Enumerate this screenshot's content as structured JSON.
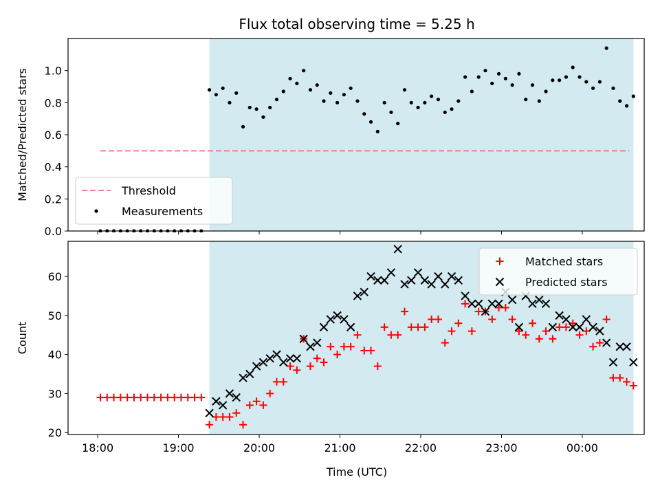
{
  "chart_data": {
    "title": "Flux total observing time = 5.25 h",
    "xlabel": "Time (UTC)",
    "x_ticks": [
      "18:00",
      "19:00",
      "20:00",
      "21:00",
      "22:00",
      "23:00",
      "00:00"
    ],
    "observing_window": {
      "start": "19:23",
      "end": "00:38",
      "color": "#d3eaf0"
    },
    "panels": [
      {
        "type": "scatter",
        "ylabel": "Matched/Predicted stars",
        "ylim": [
          0,
          1.2
        ],
        "y_ticks": [
          0.0,
          0.2,
          0.4,
          0.6,
          0.8,
          1.0
        ],
        "y_tick_labels": [
          "0.0",
          "0.2",
          "0.4",
          "0.6",
          "0.8",
          "1.0"
        ],
        "legend_position": "lower-left",
        "series": [
          {
            "name": "Threshold",
            "kind": "dashed-line",
            "color": "#f08080",
            "x": [
              "18:02",
              "00:35"
            ],
            "y": [
              0.5,
              0.5
            ]
          },
          {
            "name": "Measurements",
            "kind": "dot",
            "color": "#000000",
            "x": [
              "18:02",
              "18:07",
              "18:12",
              "18:17",
              "18:22",
              "18:27",
              "18:32",
              "18:37",
              "18:42",
              "18:47",
              "18:52",
              "18:57",
              "19:02",
              "19:07",
              "19:12",
              "19:17",
              "19:23",
              "19:28",
              "19:33",
              "19:38",
              "19:43",
              "19:48",
              "19:53",
              "19:58",
              "20:03",
              "20:08",
              "20:13",
              "20:18",
              "20:23",
              "20:28",
              "20:33",
              "20:38",
              "20:43",
              "20:48",
              "20:53",
              "20:58",
              "21:03",
              "21:08",
              "21:13",
              "21:18",
              "21:23",
              "21:28",
              "21:33",
              "21:38",
              "21:43",
              "21:48",
              "21:53",
              "21:58",
              "22:03",
              "22:08",
              "22:13",
              "22:18",
              "22:23",
              "22:28",
              "22:33",
              "22:38",
              "22:43",
              "22:48",
              "22:53",
              "22:58",
              "23:03",
              "23:08",
              "23:13",
              "23:18",
              "23:23",
              "23:28",
              "23:33",
              "23:38",
              "23:43",
              "23:48",
              "23:53",
              "23:58",
              "00:03",
              "00:08",
              "00:13",
              "00:18",
              "00:23",
              "00:28",
              "00:33",
              "00:38"
            ],
            "y": [
              0,
              0,
              0,
              0,
              0,
              0,
              0,
              0,
              0,
              0,
              0,
              0,
              0,
              0,
              0,
              0,
              0.88,
              0.85,
              0.89,
              0.8,
              0.86,
              0.65,
              0.77,
              0.76,
              0.71,
              0.77,
              0.82,
              0.87,
              0.95,
              0.92,
              1.0,
              0.88,
              0.91,
              0.81,
              0.86,
              0.8,
              0.85,
              0.89,
              0.81,
              0.73,
              0.68,
              0.62,
              0.8,
              0.74,
              0.67,
              0.88,
              0.8,
              0.77,
              0.8,
              0.84,
              0.82,
              0.74,
              0.76,
              0.81,
              0.96,
              0.87,
              0.96,
              1.0,
              0.92,
              0.98,
              0.95,
              0.91,
              0.98,
              0.82,
              0.91,
              0.81,
              0.87,
              0.94,
              0.94,
              0.96,
              1.02,
              0.96,
              0.93,
              0.89,
              0.93,
              1.14,
              0.89,
              0.81,
              0.78,
              0.84
            ]
          }
        ]
      },
      {
        "type": "scatter",
        "ylabel": "Count",
        "ylim": [
          19.5,
          69
        ],
        "y_ticks": [
          20,
          30,
          40,
          50,
          60
        ],
        "y_tick_labels": [
          "20",
          "30",
          "40",
          "50",
          "60"
        ],
        "legend_position": "top-right",
        "series": [
          {
            "name": "Matched stars",
            "kind": "plus",
            "color": "#ff0000",
            "x": [
              "18:02",
              "18:07",
              "18:12",
              "18:17",
              "18:22",
              "18:27",
              "18:32",
              "18:37",
              "18:42",
              "18:47",
              "18:52",
              "18:57",
              "19:02",
              "19:07",
              "19:12",
              "19:17",
              "19:23",
              "19:28",
              "19:33",
              "19:38",
              "19:43",
              "19:48",
              "19:53",
              "19:58",
              "20:03",
              "20:08",
              "20:13",
              "20:18",
              "20:23",
              "20:28",
              "20:33",
              "20:38",
              "20:43",
              "20:48",
              "20:53",
              "20:58",
              "21:03",
              "21:08",
              "21:13",
              "21:18",
              "21:23",
              "21:28",
              "21:33",
              "21:38",
              "21:43",
              "21:48",
              "21:53",
              "21:58",
              "22:03",
              "22:08",
              "22:13",
              "22:18",
              "22:23",
              "22:28",
              "22:33",
              "22:38",
              "22:43",
              "22:48",
              "22:53",
              "22:58",
              "23:03",
              "23:08",
              "23:13",
              "23:18",
              "23:23",
              "23:28",
              "23:33",
              "23:38",
              "23:43",
              "23:48",
              "23:53",
              "23:58",
              "00:03",
              "00:08",
              "00:13",
              "00:18",
              "00:23",
              "00:28",
              "00:33",
              "00:38"
            ],
            "y": [
              29,
              29,
              29,
              29,
              29,
              29,
              29,
              29,
              29,
              29,
              29,
              29,
              29,
              29,
              29,
              29,
              22,
              24,
              24,
              24,
              25,
              22,
              27,
              28,
              27,
              30,
              33,
              33,
              37,
              36,
              44,
              37,
              39,
              38,
              42,
              40,
              42,
              42,
              45,
              41,
              41,
              37,
              47,
              45,
              45,
              51,
              47,
              47,
              47,
              49,
              49,
              43,
              46,
              48,
              53,
              46,
              51,
              51,
              49,
              52,
              52,
              49,
              46,
              45,
              48,
              44,
              46,
              44,
              47,
              47,
              48,
              45,
              46,
              42,
              43,
              49,
              34,
              34,
              33,
              32
            ]
          },
          {
            "name": "Predicted stars",
            "kind": "cross",
            "color": "#000000",
            "x": [
              "19:23",
              "19:28",
              "19:33",
              "19:38",
              "19:43",
              "19:48",
              "19:53",
              "19:58",
              "20:03",
              "20:08",
              "20:13",
              "20:18",
              "20:23",
              "20:28",
              "20:33",
              "20:38",
              "20:43",
              "20:48",
              "20:53",
              "20:58",
              "21:03",
              "21:08",
              "21:13",
              "21:18",
              "21:23",
              "21:28",
              "21:33",
              "21:38",
              "21:43",
              "21:48",
              "21:53",
              "21:58",
              "22:03",
              "22:08",
              "22:13",
              "22:18",
              "22:23",
              "22:28",
              "22:33",
              "22:38",
              "22:43",
              "22:48",
              "22:53",
              "22:58",
              "23:03",
              "23:08",
              "23:13",
              "23:18",
              "23:23",
              "23:28",
              "23:33",
              "23:38",
              "23:43",
              "23:48",
              "23:53",
              "23:58",
              "00:03",
              "00:08",
              "00:13",
              "00:18",
              "00:23",
              "00:28",
              "00:33",
              "00:38"
            ],
            "y": [
              25,
              28,
              27,
              30,
              29,
              34,
              35,
              37,
              38,
              39,
              40,
              38,
              39,
              39,
              44,
              42,
              43,
              47,
              49,
              50,
              49,
              47,
              55,
              56,
              60,
              59,
              59,
              61,
              67,
              58,
              59,
              61,
              59,
              58,
              60,
              58,
              60,
              59,
              55,
              53,
              53,
              51,
              53,
              53,
              56,
              54,
              47,
              55,
              53,
              54,
              53,
              47,
              50,
              49,
              47,
              47,
              49,
              47,
              46,
              43,
              38,
              42,
              42,
              38
            ]
          }
        ]
      }
    ]
  }
}
